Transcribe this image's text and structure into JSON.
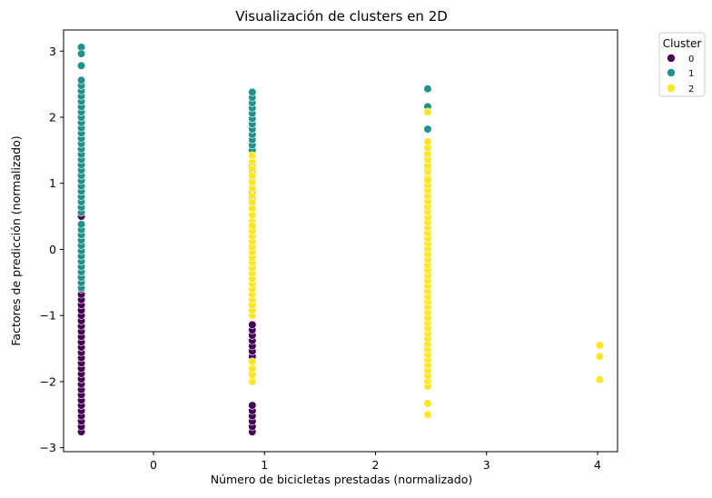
{
  "chart_data": {
    "type": "scatter",
    "title": "Visualización de clusters en 2D",
    "xlabel": "Número de bicicletas prestadas (normalizado)",
    "ylabel": "Factores de predicción (normalizado)",
    "xlim": [
      -0.81,
      4.18
    ],
    "ylim": [
      -3.06,
      3.32
    ],
    "xticks": [
      0,
      1,
      2,
      3,
      4
    ],
    "yticks": [
      -3,
      -2,
      -1,
      0,
      1,
      2,
      3
    ],
    "grid": false,
    "legend": {
      "title": "Cluster",
      "placement": "outside-top-right",
      "entries": [
        {
          "label": "0",
          "color": "#440154"
        },
        {
          "label": "1",
          "color": "#21918c"
        },
        {
          "label": "2",
          "color": "#fde725"
        }
      ]
    },
    "series": [
      {
        "cluster": "0",
        "color": "#440154",
        "points": [
          {
            "x": -0.65,
            "range": [
              -2.76,
              -0.36
            ],
            "step": 0.08
          },
          {
            "x": -0.65,
            "y": 0.5
          },
          {
            "x": 0.89,
            "range": [
              -1.62,
              -1.08
            ],
            "step": 0.08
          },
          {
            "x": 0.89,
            "y": -1.88
          },
          {
            "x": 0.89,
            "range": [
              -2.76,
              -2.3
            ],
            "step": 0.08
          }
        ]
      },
      {
        "cluster": "1",
        "color": "#21918c",
        "points": [
          {
            "x": -0.65,
            "y": 3.06
          },
          {
            "x": -0.65,
            "y": 2.96
          },
          {
            "x": -0.65,
            "y": 2.78
          },
          {
            "x": -0.65,
            "range": [
              0.56,
              2.6
            ],
            "step": 0.08
          },
          {
            "x": -0.65,
            "range": [
              -0.58,
              0.42
            ],
            "step": 0.08
          },
          {
            "x": 0.89,
            "range": [
              1.5,
              2.44
            ],
            "step": 0.08
          },
          {
            "x": 0.89,
            "range": [
              0.7,
              1.3
            ],
            "step": 0.08
          },
          {
            "x": 0.89,
            "y": 0.35
          },
          {
            "x": 0.89,
            "y": -0.02
          },
          {
            "x": 2.47,
            "y": 2.43
          },
          {
            "x": 2.47,
            "y": 2.16
          },
          {
            "x": 2.47,
            "y": 1.82
          },
          {
            "x": 2.47,
            "y": 1.55
          },
          {
            "x": 2.47,
            "y": 1.38
          },
          {
            "x": 2.47,
            "y": 1.22
          }
        ]
      },
      {
        "cluster": "2",
        "color": "#fde725",
        "points": [
          {
            "x": 0.89,
            "range": [
              0.42,
              1.48
            ],
            "step": 0.1
          },
          {
            "x": 0.89,
            "range": [
              -1.0,
              0.36
            ],
            "step": 0.08
          },
          {
            "x": 0.89,
            "range": [
              -2.0,
              -1.7
            ],
            "step": 0.1
          },
          {
            "x": 2.47,
            "y": 2.08
          },
          {
            "x": 2.47,
            "range": [
              1.0,
              1.66
            ],
            "step": 0.09
          },
          {
            "x": 2.47,
            "range": [
              -2.07,
              1.05
            ],
            "step": 0.08
          },
          {
            "x": 2.47,
            "y": -2.33
          },
          {
            "x": 2.47,
            "y": -2.5
          },
          {
            "x": 4.02,
            "y": -1.45
          },
          {
            "x": 4.02,
            "y": -1.62
          },
          {
            "x": 4.02,
            "y": -1.97
          }
        ]
      }
    ]
  }
}
